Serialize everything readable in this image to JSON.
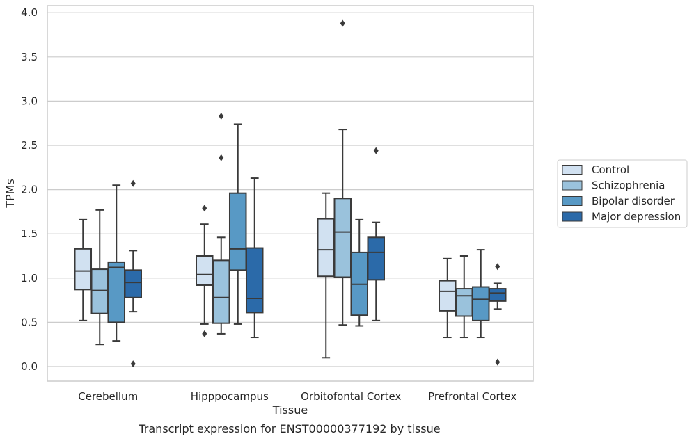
{
  "caption": "Transcript expression for ENST00000377192 by tissue",
  "chart_data": {
    "type": "box",
    "title": "",
    "xlabel": "Tissue",
    "ylabel": "TPMs",
    "ylim": [
      -0.15,
      4.08
    ],
    "yticks": [
      0.0,
      0.5,
      1.0,
      1.5,
      2.0,
      2.5,
      3.0,
      3.5,
      4.0
    ],
    "ytick_labels": [
      "0.0",
      "0.5",
      "1.0",
      "1.5",
      "2.0",
      "2.5",
      "3.0",
      "3.5",
      "4.0"
    ],
    "grid": true,
    "legend_position": "right",
    "categories": [
      "Cerebellum",
      "Hipppocampus",
      "Orbitofontal Cortex",
      "Prefrontal Cortex"
    ],
    "series": [
      {
        "name": "Control",
        "color": "#d1e1f1",
        "boxes": [
          {
            "whislo": 0.52,
            "q1": 0.87,
            "med": 1.08,
            "q3": 1.33,
            "whishi": 1.66,
            "fliers": []
          },
          {
            "whislo": 0.48,
            "q1": 0.92,
            "med": 1.04,
            "q3": 1.25,
            "whishi": 1.61,
            "fliers": [
              1.79,
              0.37
            ]
          },
          {
            "whislo": 0.1,
            "q1": 1.02,
            "med": 1.32,
            "q3": 1.67,
            "whishi": 1.96,
            "fliers": []
          },
          {
            "whislo": 0.33,
            "q1": 0.63,
            "med": 0.85,
            "q3": 0.97,
            "whishi": 1.22,
            "fliers": []
          }
        ]
      },
      {
        "name": "Schizophrenia",
        "color": "#9ac2dc",
        "boxes": [
          {
            "whislo": 0.25,
            "q1": 0.6,
            "med": 0.86,
            "q3": 1.1,
            "whishi": 1.77,
            "fliers": []
          },
          {
            "whislo": 0.37,
            "q1": 0.49,
            "med": 0.78,
            "q3": 1.2,
            "whishi": 1.46,
            "fliers": [
              2.83,
              2.36
            ]
          },
          {
            "whislo": 0.47,
            "q1": 1.01,
            "med": 1.52,
            "q3": 1.9,
            "whishi": 2.68,
            "fliers": [
              3.88
            ]
          },
          {
            "whislo": 0.33,
            "q1": 0.57,
            "med": 0.8,
            "q3": 0.88,
            "whishi": 1.25,
            "fliers": []
          }
        ]
      },
      {
        "name": "Bipolar disorder",
        "color": "#5899c5",
        "boxes": [
          {
            "whislo": 0.29,
            "q1": 0.5,
            "med": 1.12,
            "q3": 1.18,
            "whishi": 2.05,
            "fliers": []
          },
          {
            "whislo": 0.48,
            "q1": 1.09,
            "med": 1.33,
            "q3": 1.96,
            "whishi": 2.74,
            "fliers": []
          },
          {
            "whislo": 0.46,
            "q1": 0.58,
            "med": 0.93,
            "q3": 1.29,
            "whishi": 1.66,
            "fliers": []
          },
          {
            "whislo": 0.33,
            "q1": 0.52,
            "med": 0.76,
            "q3": 0.9,
            "whishi": 1.32,
            "fliers": []
          }
        ]
      },
      {
        "name": "Major depression",
        "color": "#2b6aa9",
        "boxes": [
          {
            "whislo": 0.62,
            "q1": 0.78,
            "med": 0.95,
            "q3": 1.09,
            "whishi": 1.31,
            "fliers": [
              2.07,
              0.03
            ]
          },
          {
            "whislo": 0.33,
            "q1": 0.61,
            "med": 0.77,
            "q3": 1.34,
            "whishi": 2.13,
            "fliers": []
          },
          {
            "whislo": 0.52,
            "q1": 0.98,
            "med": 1.29,
            "q3": 1.46,
            "whishi": 1.63,
            "fliers": [
              2.44
            ]
          },
          {
            "whislo": 0.65,
            "q1": 0.74,
            "med": 0.83,
            "q3": 0.88,
            "whishi": 0.94,
            "fliers": [
              1.13,
              0.05
            ]
          }
        ]
      }
    ]
  }
}
